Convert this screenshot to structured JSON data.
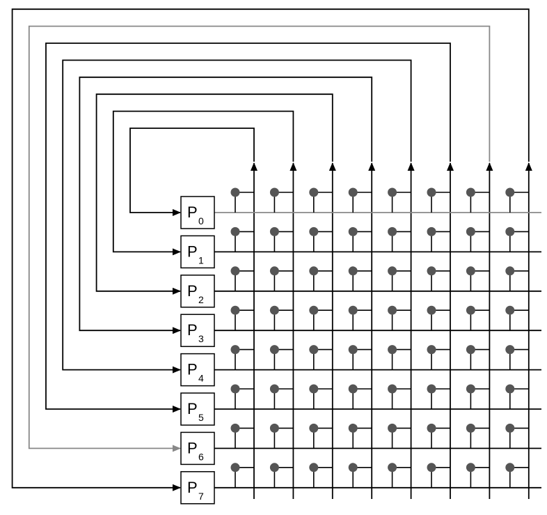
{
  "processors": [
    {
      "letter": "P",
      "index": "0"
    },
    {
      "letter": "P",
      "index": "1"
    },
    {
      "letter": "P",
      "index": "2"
    },
    {
      "letter": "P",
      "index": "3"
    },
    {
      "letter": "P",
      "index": "4"
    },
    {
      "letter": "P",
      "index": "5"
    },
    {
      "letter": "P",
      "index": "6"
    },
    {
      "letter": "P",
      "index": "7"
    }
  ],
  "highlighted_processor": 6,
  "colors": {
    "line": "#000000",
    "highlight": "#888888",
    "node": "#555555",
    "background": "#ffffff"
  }
}
